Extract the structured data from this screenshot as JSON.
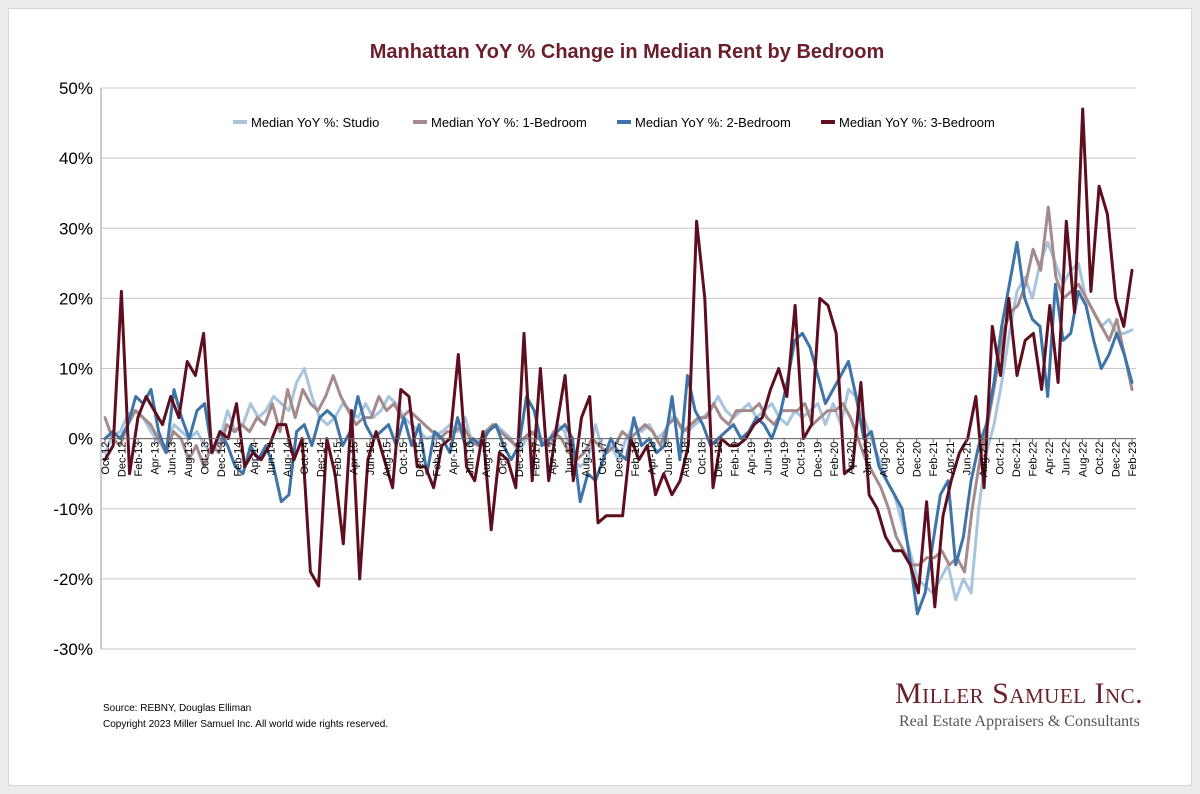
{
  "footer": {
    "source": "Source: REBNY, Douglas Elliman",
    "copyright": "Copyright 2023 Miller Samuel Inc.  All world wide rights reserved."
  },
  "logo": {
    "name": "Miller Samuel Inc.",
    "tagline": "Real Estate Appraisers & Consultants"
  },
  "colors": {
    "title": "#6b1f2a",
    "studio": "#a9c4de",
    "one_bedroom": "#a58a8c",
    "two_bedroom": "#3f74a8",
    "three_bedroom": "#5e0f1f",
    "gridline": "#c8c8c8"
  },
  "chart_data": {
    "type": "line",
    "title": "Manhattan YoY % Change in Median Rent by Bedroom",
    "xlabel": "",
    "ylabel": "",
    "ylim": [
      -30,
      50
    ],
    "yticks": [
      "-30%",
      "-20%",
      "-10%",
      "0%",
      "10%",
      "20%",
      "30%",
      "40%",
      "50%"
    ],
    "grid": "horizontal",
    "legend_position": "top",
    "x_start": "Oct-12",
    "x_end": "Feb-23",
    "x_tick_labels": [
      "Oct-12",
      "Dec-12",
      "Feb-13",
      "Apr-13",
      "Jun-13",
      "Aug-13",
      "Oct-13",
      "Dec-13",
      "Feb-14",
      "Apr-14",
      "Jun-14",
      "Aug-14",
      "Oct-14",
      "Dec-14",
      "Feb-15",
      "Apr-15",
      "Jun-15",
      "Aug-15",
      "Oct-15",
      "Dec-15",
      "Feb-16",
      "Apr-16",
      "Jun-16",
      "Aug-16",
      "Oct-16",
      "Dec-16",
      "Feb-17",
      "Apr-17",
      "Jun-17",
      "Aug-17",
      "Oct-17",
      "Dec-17",
      "Feb-18",
      "Apr-18",
      "Jun-18",
      "Aug-18",
      "Oct-18",
      "Dec-18",
      "Feb-19",
      "Apr-19",
      "Jun-19",
      "Aug-19",
      "Oct-19",
      "Dec-19",
      "Feb-20",
      "Apr-20",
      "Jun-20",
      "Aug-20",
      "Oct-20",
      "Dec-20",
      "Feb-21",
      "Apr-21",
      "Jun-21",
      "Aug-21",
      "Oct-21",
      "Dec-21",
      "Feb-22",
      "Apr-22",
      "Jun-22",
      "Aug-22",
      "Oct-22",
      "Dec-22",
      "Feb-23"
    ],
    "series": [
      {
        "name": "Median YoY %: Studio",
        "values": [
          -2,
          0.5,
          1,
          3.5,
          4,
          3,
          1,
          -0.5,
          -1,
          2,
          1,
          0,
          1,
          -1,
          -2,
          0,
          4,
          1,
          2,
          5,
          3,
          4,
          6,
          5,
          4,
          8,
          10,
          6,
          3,
          2,
          3,
          5,
          4,
          3,
          5,
          3,
          4,
          6,
          5,
          3,
          2,
          1,
          0,
          0.5,
          1,
          2,
          1,
          3,
          -1,
          0,
          1,
          2,
          1,
          0,
          -2,
          0,
          1,
          0,
          -1,
          2,
          1,
          -3,
          -4,
          -3,
          2,
          -2,
          -1,
          -3,
          0,
          2,
          1,
          2,
          0,
          1,
          3,
          2,
          1,
          2,
          3,
          4,
          6,
          4,
          3,
          4,
          5,
          3,
          4,
          5,
          3,
          2,
          4,
          3,
          4,
          5,
          2,
          5,
          2,
          7,
          6,
          3,
          0,
          -3,
          -6,
          -8,
          -12,
          -16,
          -20,
          -21,
          -22,
          -20,
          -18,
          -23,
          -20,
          -22,
          -10,
          -2,
          2,
          8,
          15,
          21,
          23,
          20,
          25,
          28,
          25,
          22,
          24,
          25,
          20,
          18,
          16,
          17,
          15,
          15,
          15.5
        ]
      },
      {
        "name": "Median YoY %: 1-Bedroom",
        "values": [
          3,
          0,
          -1,
          2,
          4,
          3,
          2,
          0,
          -2,
          1,
          0,
          -3,
          -1,
          -4,
          -1,
          -2,
          2,
          1,
          2,
          1,
          3,
          2,
          5,
          1,
          7,
          3,
          7,
          5,
          4,
          6,
          9,
          6,
          4,
          2,
          3,
          3,
          6,
          4,
          5,
          3,
          4,
          3,
          2,
          1,
          0,
          1,
          1,
          2,
          0,
          -1,
          1,
          2,
          1,
          0,
          -1,
          0,
          1,
          0,
          -1,
          1,
          0,
          -2,
          -3,
          -2,
          0,
          -1,
          -2,
          -1,
          1,
          0,
          1,
          2,
          1,
          -1,
          2,
          3,
          1,
          2,
          3,
          3,
          5,
          3,
          2,
          4,
          4,
          4,
          5,
          3,
          2,
          4,
          4,
          4,
          5,
          2,
          3,
          4,
          4,
          5,
          3,
          0,
          -3,
          -5,
          -7,
          -10,
          -14,
          -16,
          -18,
          -18,
          -17,
          -17,
          -16,
          -18,
          -17,
          -19,
          -10,
          -3,
          2,
          8,
          15,
          18,
          19,
          22,
          27,
          24,
          33,
          23,
          20,
          21,
          22,
          20,
          18,
          16,
          14,
          17,
          12,
          7
        ]
      },
      {
        "name": "Median YoY %: 2-Bedroom",
        "values": [
          0,
          1,
          0,
          2,
          6,
          5,
          7,
          1,
          -2,
          7,
          3,
          0,
          4,
          5,
          -2,
          1,
          -1,
          -4,
          -5,
          -1,
          -3,
          -1,
          -4,
          -9,
          -8,
          1,
          2,
          -1,
          3,
          4,
          3,
          -1,
          1,
          6,
          2,
          0,
          1,
          2,
          -1,
          3,
          -1,
          2,
          -5,
          1,
          0,
          -2,
          3,
          -1,
          0,
          -1,
          1,
          2,
          -1,
          -3,
          -1,
          6,
          4,
          -1,
          0,
          1,
          2,
          0,
          -9,
          -5,
          -6,
          -3,
          0,
          -2,
          -3,
          3,
          -1,
          0,
          -2,
          -1,
          6,
          -3,
          9,
          4,
          2,
          -1,
          0,
          1,
          2,
          0,
          1,
          3,
          2,
          0,
          3,
          8,
          14,
          15,
          13,
          9,
          5,
          7,
          9,
          11,
          6,
          0,
          1,
          -4,
          -6,
          -8,
          -10,
          -17,
          -25,
          -22,
          -15,
          -8,
          -6,
          -18,
          -14,
          -6,
          -1,
          2,
          8,
          16,
          22,
          28,
          20,
          17,
          16,
          6,
          22,
          14,
          15,
          21,
          19,
          14,
          10,
          12,
          15,
          12,
          8
        ]
      },
      {
        "name": "Median YoY %: 3-Bedroom",
        "values": [
          -3,
          -1,
          21,
          -5,
          3,
          6,
          4,
          2,
          6,
          3,
          11,
          9,
          15,
          -2,
          1,
          0,
          5,
          -4,
          -2,
          -3,
          -1,
          2,
          2,
          -3,
          0,
          -19,
          -21,
          0,
          -5,
          -15,
          4,
          -20,
          -3,
          1,
          -3,
          -7,
          7,
          6,
          -4,
          -4,
          -7,
          -1,
          0,
          12,
          -4,
          -6,
          1,
          -13,
          -2,
          -3,
          -7,
          15,
          -6,
          10,
          -6,
          2,
          9,
          -6,
          3,
          6,
          -12,
          -11,
          -11,
          -11,
          0,
          -3,
          -1,
          -8,
          -5,
          -8,
          -6,
          -1,
          31,
          20,
          -7,
          0,
          -1,
          -1,
          0,
          2,
          3,
          7,
          10,
          6,
          19,
          0,
          2,
          20,
          19,
          15,
          -5,
          -4,
          8,
          -8,
          -10,
          -14,
          -16,
          -16,
          -18,
          -22,
          -9,
          -24,
          -11,
          -6,
          -2,
          0,
          6,
          -7,
          16,
          9,
          20,
          9,
          14,
          15,
          7,
          19,
          8,
          31,
          18,
          47,
          21,
          36,
          32,
          20,
          16,
          24
        ]
      }
    ]
  }
}
